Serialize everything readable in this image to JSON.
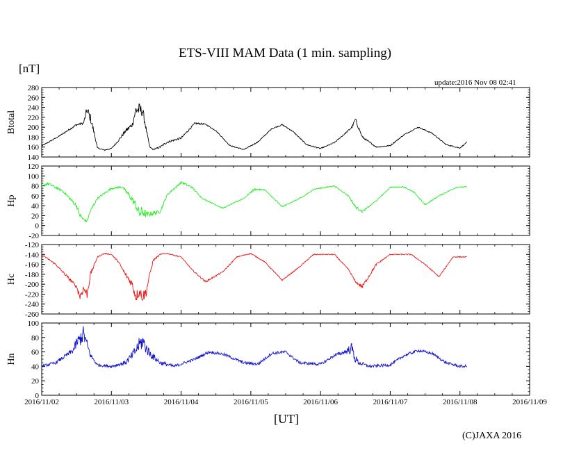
{
  "page": {
    "title": "ETS-VIII MAM Data (1 min. sampling)",
    "unit_label": "[nT]",
    "update": "update:2016 Nov 08 02:41",
    "xlabel": "[UT]",
    "credit": "(C)JAXA 2016"
  },
  "chart_data": {
    "type": "line",
    "title": "ETS-VIII MAM Data (1 min. sampling)",
    "xlabel": "[UT]",
    "ylabel": "[nT]",
    "x_unit": "days since 2016/11/02 00:00 UT",
    "xlim": [
      0,
      7
    ],
    "x_ticks": [
      "2016/11/02",
      "2016/11/03",
      "2016/11/04",
      "2016/11/05",
      "2016/11/06",
      "2016/11/07",
      "2016/11/08",
      "2016/11/09"
    ],
    "grid": false,
    "panels": [
      {
        "name": "Btotal",
        "color": "#000000",
        "ylim": [
          140,
          280
        ],
        "yticks": [
          140,
          160,
          180,
          200,
          220,
          240,
          260,
          280
        ],
        "x": [
          0,
          0.25,
          0.5,
          0.6,
          0.65,
          0.7,
          0.75,
          0.8,
          0.9,
          1.0,
          1.1,
          1.2,
          1.3,
          1.35,
          1.4,
          1.45,
          1.5,
          1.55,
          1.6,
          1.7,
          1.8,
          2.0,
          2.2,
          2.35,
          2.5,
          2.7,
          2.9,
          3.1,
          3.3,
          3.45,
          3.6,
          3.8,
          4.0,
          4.2,
          4.35,
          4.45,
          4.5,
          4.6,
          4.8,
          5.0,
          5.2,
          5.4,
          5.6,
          5.8,
          6.0,
          6.1
        ],
        "y": [
          162,
          182,
          205,
          208,
          235,
          218,
          190,
          158,
          154,
          157,
          173,
          192,
          205,
          235,
          235,
          232,
          195,
          160,
          155,
          160,
          170,
          178,
          208,
          206,
          193,
          163,
          155,
          170,
          197,
          205,
          192,
          165,
          157,
          169,
          187,
          200,
          215,
          180,
          160,
          163,
          185,
          200,
          188,
          165,
          158,
          170
        ],
        "noise": [
          1,
          1,
          2,
          2,
          10,
          9,
          4,
          1,
          1,
          1,
          2,
          4,
          5,
          12,
          14,
          10,
          4,
          1,
          1,
          2,
          2,
          2,
          2,
          1,
          1,
          1,
          1,
          1,
          1,
          1,
          1,
          1,
          1,
          1,
          1,
          2,
          4,
          2,
          1,
          1,
          1,
          1,
          1,
          1,
          1,
          1
        ]
      },
      {
        "name": "Hp",
        "color": "#22ee22",
        "ylim": [
          -20,
          120
        ],
        "yticks": [
          -20,
          0,
          20,
          40,
          60,
          80,
          100,
          120
        ],
        "x": [
          0,
          0.08,
          0.3,
          0.5,
          0.55,
          0.6,
          0.65,
          0.7,
          0.8,
          1.0,
          1.15,
          1.25,
          1.35,
          1.4,
          1.45,
          1.5,
          1.7,
          1.8,
          2.0,
          2.15,
          2.3,
          2.6,
          2.9,
          3.05,
          3.2,
          3.45,
          3.75,
          3.9,
          4.2,
          4.4,
          4.5,
          4.6,
          4.8,
          5.0,
          5.2,
          5.35,
          5.5,
          5.7,
          5.95,
          6.1
        ],
        "y": [
          78,
          85,
          70,
          40,
          20,
          12,
          9,
          30,
          55,
          75,
          78,
          62,
          42,
          24,
          28,
          22,
          28,
          62,
          87,
          78,
          55,
          35,
          55,
          73,
          72,
          38,
          58,
          73,
          80,
          60,
          38,
          28,
          50,
          77,
          78,
          66,
          42,
          60,
          77,
          78
        ],
        "noise": [
          2,
          3,
          2,
          4,
          6,
          4,
          2,
          4,
          2,
          2,
          2,
          5,
          8,
          12,
          12,
          6,
          3,
          2,
          2,
          2,
          1,
          1,
          1,
          2,
          1,
          1,
          1,
          1,
          1,
          1,
          3,
          2,
          1,
          1,
          1,
          1,
          1,
          1,
          1,
          1
        ]
      },
      {
        "name": "Hc",
        "color": "#ee1111",
        "ylim": [
          -260,
          -120
        ],
        "yticks": [
          -260,
          -240,
          -220,
          -200,
          -180,
          -160,
          -140,
          -120
        ],
        "x": [
          0,
          0.2,
          0.4,
          0.5,
          0.55,
          0.6,
          0.65,
          0.7,
          0.8,
          0.9,
          1.0,
          1.1,
          1.2,
          1.3,
          1.35,
          1.4,
          1.45,
          1.5,
          1.55,
          1.6,
          1.7,
          1.8,
          2.0,
          2.15,
          2.35,
          2.6,
          2.8,
          3.0,
          3.2,
          3.45,
          3.7,
          3.9,
          4.2,
          4.4,
          4.5,
          4.6,
          4.8,
          5.0,
          5.3,
          5.5,
          5.7,
          5.9,
          6.1
        ],
        "y": [
          -140,
          -160,
          -190,
          -205,
          -225,
          -208,
          -220,
          -180,
          -145,
          -138,
          -140,
          -155,
          -180,
          -200,
          -225,
          -215,
          -225,
          -215,
          -180,
          -152,
          -140,
          -138,
          -145,
          -170,
          -195,
          -175,
          -145,
          -138,
          -155,
          -192,
          -165,
          -140,
          -140,
          -170,
          -195,
          -205,
          -160,
          -140,
          -140,
          -160,
          -185,
          -145,
          -145
        ],
        "noise": [
          1,
          2,
          3,
          3,
          10,
          8,
          10,
          5,
          1,
          1,
          1,
          2,
          4,
          8,
          12,
          10,
          12,
          10,
          4,
          2,
          1,
          1,
          1,
          1,
          2,
          1,
          1,
          1,
          1,
          1,
          1,
          1,
          1,
          1,
          2,
          4,
          2,
          1,
          1,
          1,
          1,
          1,
          1
        ]
      },
      {
        "name": "Hn",
        "color": "#1111cc",
        "ylim": [
          0,
          100
        ],
        "yticks": [
          0,
          20,
          40,
          60,
          80,
          100
        ],
        "x": [
          0,
          0.2,
          0.35,
          0.45,
          0.5,
          0.55,
          0.6,
          0.65,
          0.7,
          0.8,
          1.0,
          1.2,
          1.3,
          1.4,
          1.45,
          1.5,
          1.55,
          1.7,
          1.9,
          2.2,
          2.4,
          2.6,
          2.9,
          3.1,
          3.3,
          3.5,
          3.7,
          4.0,
          4.2,
          4.35,
          4.45,
          4.5,
          4.55,
          4.7,
          5.0,
          5.2,
          5.4,
          5.6,
          5.8,
          6.0,
          6.1
        ],
        "y": [
          40,
          45,
          55,
          62,
          72,
          78,
          85,
          70,
          55,
          42,
          40,
          45,
          55,
          70,
          75,
          65,
          58,
          45,
          40,
          50,
          60,
          57,
          45,
          43,
          58,
          60,
          45,
          43,
          55,
          60,
          65,
          50,
          45,
          40,
          42,
          55,
          62,
          58,
          45,
          40,
          40
        ],
        "noise": [
          2,
          2,
          3,
          4,
          8,
          10,
          12,
          8,
          4,
          2,
          2,
          3,
          6,
          10,
          12,
          8,
          6,
          3,
          2,
          2,
          2,
          2,
          2,
          2,
          2,
          2,
          2,
          2,
          2,
          3,
          8,
          6,
          3,
          2,
          2,
          2,
          2,
          2,
          2,
          2,
          2
        ]
      }
    ]
  }
}
